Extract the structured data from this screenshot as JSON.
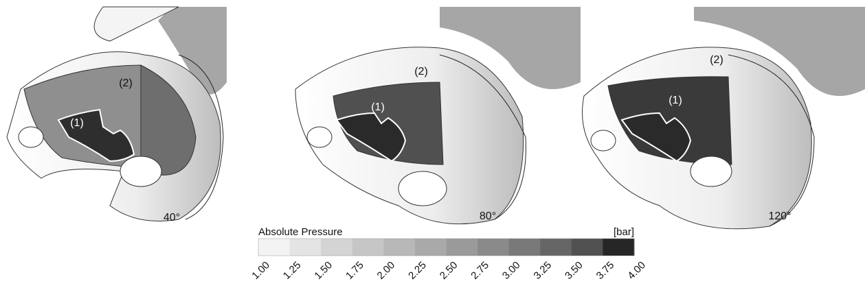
{
  "panels": [
    {
      "angle": "40°",
      "region_1": "(1)",
      "region_2": "(2)"
    },
    {
      "angle": "80°",
      "region_1": "(1)",
      "region_2": "(2)"
    },
    {
      "angle": "120°",
      "region_1": "(1)",
      "region_2": "(2)"
    }
  ],
  "colorbar": {
    "title": "Absolute Pressure",
    "unit": "[bar]",
    "ticks": [
      "1.00",
      "1.25",
      "1.50",
      "1.75",
      "2.00",
      "2.25",
      "2.50",
      "2.75",
      "3.00",
      "3.25",
      "3.50",
      "3.75",
      "4.00"
    ],
    "colors": [
      "#f3f3f3",
      "#e4e4e4",
      "#d4d4d4",
      "#c6c6c6",
      "#b8b8b8",
      "#a9a9a9",
      "#9a9a9a",
      "#8a8a8a",
      "#797979",
      "#666666",
      "#515151",
      "#3a3a3a",
      "#262626"
    ]
  }
}
